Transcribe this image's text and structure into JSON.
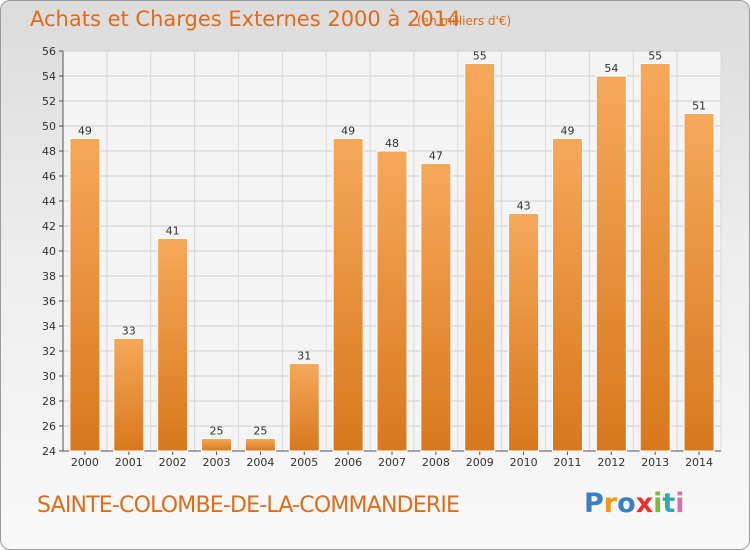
{
  "header": {
    "title": "Achats et Charges Externes 2000 à 2014",
    "subtitle": "(en milliers d'€)"
  },
  "footer": {
    "commune": "SAINTE-COLOMBE-DE-LA-COMMANDERIE",
    "logo_letters": [
      "P",
      "r",
      "o",
      "x",
      "i",
      "t",
      "i"
    ]
  },
  "colors": {
    "accent": "#e06b1a",
    "bar_top": "#f6a85a",
    "bar_bottom": "#d8781c"
  },
  "chart_data": {
    "type": "bar",
    "title": "Achats et Charges Externes 2000 à 2014",
    "subtitle": "(en milliers d'€)",
    "categories": [
      "2000",
      "2001",
      "2002",
      "2003",
      "2004",
      "2005",
      "2006",
      "2007",
      "2008",
      "2009",
      "2010",
      "2011",
      "2012",
      "2013",
      "2014"
    ],
    "values": [
      49,
      33,
      41,
      25,
      25,
      31,
      49,
      48,
      47,
      55,
      43,
      49,
      54,
      55,
      51
    ],
    "ylim": [
      24,
      56
    ],
    "yticks": [
      24,
      26,
      28,
      30,
      32,
      34,
      36,
      38,
      40,
      42,
      44,
      46,
      48,
      50,
      52,
      54,
      56
    ],
    "grid": true,
    "data_labels": true
  }
}
